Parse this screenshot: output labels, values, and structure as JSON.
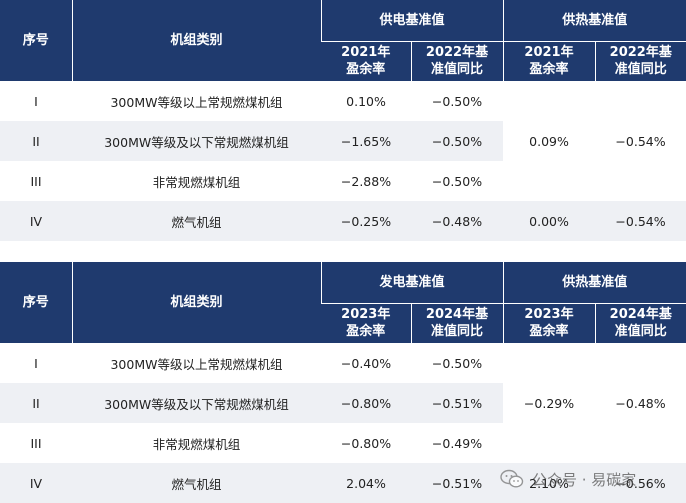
{
  "table1": {
    "header": {
      "seq": "序号",
      "unit_type": "机组类别",
      "group_power": "供电基准值",
      "group_heat": "供热基准值",
      "sub": [
        "2021年\n盈余率",
        "2022年基\n准值同比",
        "2021年\n盈余率",
        "2022年基\n准值同比"
      ]
    },
    "rows": [
      {
        "seq": "I",
        "type": "300MW等级以上常规燃煤机组",
        "v1": "0.10%",
        "v2": "−0.50%"
      },
      {
        "seq": "II",
        "type": "300MW等级及以下常规燃煤机组",
        "v1": "−1.65%",
        "v2": "−0.50%"
      },
      {
        "seq": "III",
        "type": "非常规燃煤机组",
        "v1": "−2.88%",
        "v2": "−0.50%"
      },
      {
        "seq": "IV",
        "type": "燃气机组",
        "v1": "−0.25%",
        "v2": "−0.48%",
        "v3": "0.00%",
        "v4": "−0.54%"
      }
    ],
    "merged": {
      "v3": "0.09%",
      "v4": "−0.54%"
    }
  },
  "table2": {
    "header": {
      "seq": "序号",
      "unit_type": "机组类别",
      "group_power": "发电基准值",
      "group_heat": "供热基准值",
      "sub": [
        "2023年\n盈余率",
        "2024年基\n准值同比",
        "2023年\n盈余率",
        "2024年基\n准值同比"
      ]
    },
    "rows": [
      {
        "seq": "I",
        "type": "300MW等级以上常规燃煤机组",
        "v1": "−0.40%",
        "v2": "−0.50%"
      },
      {
        "seq": "II",
        "type": "300MW等级及以下常规燃煤机组",
        "v1": "−0.80%",
        "v2": "−0.51%"
      },
      {
        "seq": "III",
        "type": "非常规燃煤机组",
        "v1": "−0.80%",
        "v2": "−0.49%"
      },
      {
        "seq": "IV",
        "type": "燃气机组",
        "v1": "2.04%",
        "v2": "−0.51%",
        "v3": "2.10%",
        "v4": "−0.56%"
      }
    ],
    "merged": {
      "v3": "−0.29%",
      "v4": "−0.48%"
    }
  },
  "watermark": {
    "text": "公众号 · 易碳家",
    "icon": "wechat-icon"
  },
  "colors": {
    "header_bg": "#1f3a6e",
    "stripe": "#eef0f4"
  }
}
